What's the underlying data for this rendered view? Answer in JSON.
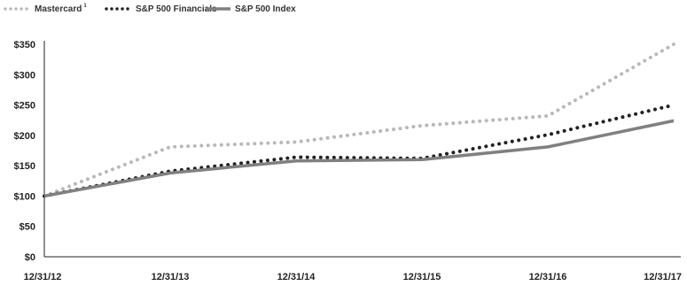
{
  "chart_data": {
    "type": "line",
    "title": "",
    "xlabel": "",
    "ylabel": "",
    "categories": [
      "12/31/12",
      "12/31/13",
      "12/31/14",
      "12/31/15",
      "12/31/16",
      "12/31/17"
    ],
    "ylim": [
      0,
      350
    ],
    "yticks": [
      0,
      50,
      100,
      150,
      200,
      250,
      300,
      350
    ],
    "yticklabels": [
      "$0",
      "$50",
      "$100",
      "$150",
      "$200",
      "$250",
      "$300",
      "$350"
    ],
    "grid": false,
    "legend_position": "top-left",
    "series": [
      {
        "name": "Mastercard",
        "name_superscript": "1",
        "values": [
          100,
          181,
          189,
          216,
          232,
          350
        ],
        "color": "#b8b8b8",
        "style": "dotted"
      },
      {
        "name": "S&P 500 Financials",
        "values": [
          100,
          141,
          164,
          162,
          201,
          250
        ],
        "color": "#222222",
        "style": "dotted"
      },
      {
        "name": "S&P 500 Index",
        "values": [
          100,
          138,
          158,
          160,
          181,
          224
        ],
        "color": "#808080",
        "style": "solid"
      }
    ]
  }
}
